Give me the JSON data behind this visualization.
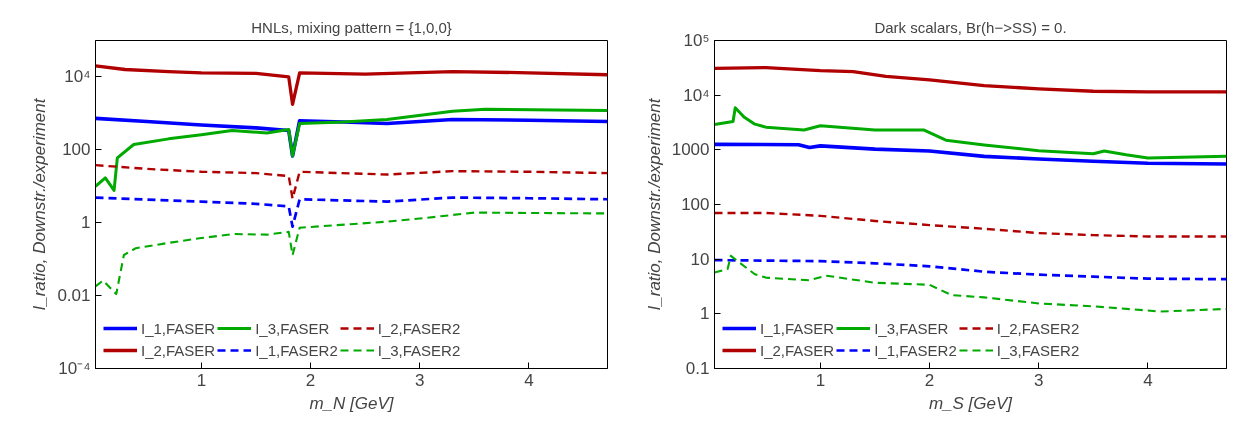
{
  "chart_data": [
    {
      "type": "line",
      "title": "HNLs, mixing pattern = {1,0,0}",
      "xlabel": "m_N [GeV]",
      "ylabel": "I_ratio, Downstr./experiment",
      "log": true,
      "legend": "bottom left",
      "xlim": [
        0.03,
        4.72
      ],
      "ylim": [
        0.0001,
        100000
      ],
      "xticks": [
        1,
        2,
        3,
        4
      ],
      "yticks": [
        {
          "value": 0.0001,
          "label": "10⁻⁴"
        },
        0.01,
        1,
        100,
        {
          "value": 10000,
          "label": "10⁴"
        }
      ],
      "series": [
        {
          "name": "I_1,FASER",
          "color": "#0000ff",
          "line_style": "solid",
          "x": [
            0.03,
            0.5,
            1.0,
            1.5,
            1.8,
            1.835,
            1.9,
            2.3,
            2.7,
            3.3,
            4.0,
            4.72
          ],
          "values": [
            730,
            600,
            480,
            400,
            340,
            68,
            630,
            580,
            530,
            680,
            650,
            600
          ]
        },
        {
          "name": "I_2,FASER",
          "color": "#b00000",
          "line_style": "solid",
          "x": [
            0.03,
            0.3,
            0.7,
            1.0,
            1.5,
            1.8,
            1.835,
            1.9,
            2.5,
            3.3,
            4.0,
            4.72
          ],
          "values": [
            20000,
            16000,
            14000,
            13000,
            12500,
            10000,
            1780,
            13000,
            12000,
            14000,
            13000,
            11500
          ]
        },
        {
          "name": "I_3,FASER",
          "color": "#00aa00",
          "line_style": "solid",
          "x": [
            0.03,
            0.12,
            0.2,
            0.23,
            0.38,
            0.7,
            1.0,
            1.28,
            1.6,
            1.8,
            1.835,
            1.9,
            2.3,
            2.7,
            3.3,
            3.6,
            4.72
          ],
          "values": [
            10,
            17,
            7.7,
            60,
            140,
            200,
            260,
            340,
            290,
            360,
            68,
            530,
            580,
            680,
            1140,
            1300,
            1200
          ]
        },
        {
          "name": "I_1,FASER2",
          "color": "#0000ff",
          "line_style": "dashed",
          "x": [
            0.03,
            0.5,
            1.0,
            1.5,
            1.8,
            1.835,
            1.9,
            2.7,
            3.3,
            4.0,
            4.72
          ],
          "values": [
            4.9,
            4.3,
            3.8,
            3.3,
            2.8,
            0.78,
            4.4,
            3.8,
            4.9,
            4.7,
            4.4
          ]
        },
        {
          "name": "I_2,FASER2",
          "color": "#b00000",
          "line_style": "dashed",
          "x": [
            0.03,
            0.5,
            1.0,
            1.5,
            1.8,
            1.835,
            1.9,
            2.7,
            3.3,
            4.0,
            4.72
          ],
          "values": [
            38,
            30,
            25,
            23,
            19,
            4.6,
            25,
            21,
            26,
            25,
            23
          ]
        },
        {
          "name": "I_3,FASER2",
          "color": "#00aa00",
          "line_style": "dashed",
          "x": [
            0.03,
            0.1,
            0.22,
            0.29,
            0.4,
            0.7,
            1.0,
            1.3,
            1.6,
            1.8,
            1.835,
            1.9,
            2.7,
            3.0,
            3.5,
            4.0,
            4.72
          ],
          "values": [
            0.018,
            0.026,
            0.011,
            0.13,
            0.2,
            0.28,
            0.38,
            0.49,
            0.47,
            0.56,
            0.13,
            0.73,
            1.07,
            1.3,
            1.9,
            1.85,
            1.8
          ]
        }
      ]
    },
    {
      "type": "line",
      "title": "Dark scalars, Br(h−>SS) = 0.",
      "xlabel": "m_S [GeV]",
      "ylabel": "I_ratio, Downstr./experiment",
      "log": true,
      "legend": "bottom left",
      "xlim": [
        0.03,
        4.72
      ],
      "ylim": [
        0.1,
        100000
      ],
      "xticks": [
        1,
        2,
        3,
        4
      ],
      "yticks": [
        0.1,
        1,
        10,
        100,
        1000,
        {
          "value": 10000,
          "label": "10⁴"
        },
        {
          "value": 100000,
          "label": "10⁵"
        }
      ],
      "series": [
        {
          "name": "I_1,FASER",
          "color": "#0000ff",
          "line_style": "solid",
          "x": [
            0.03,
            0.8,
            0.9,
            1.0,
            1.5,
            2.0,
            2.5,
            3.0,
            3.5,
            4.0,
            4.72
          ],
          "values": [
            1260,
            1240,
            1100,
            1180,
            1030,
            950,
            760,
            680,
            620,
            570,
            550
          ]
        },
        {
          "name": "I_2,FASER",
          "color": "#b00000",
          "line_style": "solid",
          "x": [
            0.03,
            0.5,
            1.0,
            1.3,
            1.6,
            2.0,
            2.5,
            3.0,
            3.5,
            4.0,
            4.72
          ],
          "values": [
            31000,
            32000,
            28000,
            27000,
            22000,
            19000,
            15000,
            13000,
            11800,
            11500,
            11500
          ]
        },
        {
          "name": "I_3,FASER",
          "color": "#00aa00",
          "line_style": "solid",
          "x": [
            0.03,
            0.2,
            0.22,
            0.3,
            0.4,
            0.5,
            0.85,
            1.0,
            1.5,
            1.95,
            2.15,
            2.5,
            3.0,
            3.5,
            3.6,
            3.8,
            4.0,
            4.72
          ],
          "values": [
            2900,
            3300,
            5900,
            4000,
            2950,
            2600,
            2300,
            2750,
            2300,
            2300,
            1500,
            1230,
            960,
            850,
            950,
            810,
            710,
            760
          ]
        },
        {
          "name": "I_1,FASER2",
          "color": "#0000ff",
          "line_style": "dashed",
          "x": [
            0.03,
            1.0,
            1.5,
            2.0,
            2.5,
            3.0,
            3.5,
            4.0,
            4.72
          ],
          "values": [
            9.6,
            9.2,
            8.4,
            7.4,
            5.9,
            5.2,
            4.8,
            4.4,
            4.3
          ]
        },
        {
          "name": "I_2,FASER2",
          "color": "#b00000",
          "line_style": "dashed",
          "x": [
            0.03,
            0.5,
            1.0,
            1.5,
            2.0,
            2.5,
            3.0,
            3.5,
            4.0,
            4.72
          ],
          "values": [
            70,
            70,
            62,
            50,
            42,
            36,
            30,
            27.5,
            26,
            26
          ]
        },
        {
          "name": "I_3,FASER2",
          "color": "#00aa00",
          "line_style": "dashed",
          "x": [
            0.03,
            0.15,
            0.18,
            0.25,
            0.4,
            0.5,
            0.9,
            1.05,
            1.5,
            2.0,
            2.2,
            2.5,
            3.0,
            3.5,
            4.0,
            4.1,
            4.72
          ],
          "values": [
            5.7,
            6.6,
            11.5,
            8.9,
            5.3,
            4.6,
            4.1,
            5.0,
            3.7,
            3.4,
            2.2,
            2.0,
            1.55,
            1.37,
            1.15,
            1.1,
            1.23
          ]
        }
      ]
    }
  ]
}
